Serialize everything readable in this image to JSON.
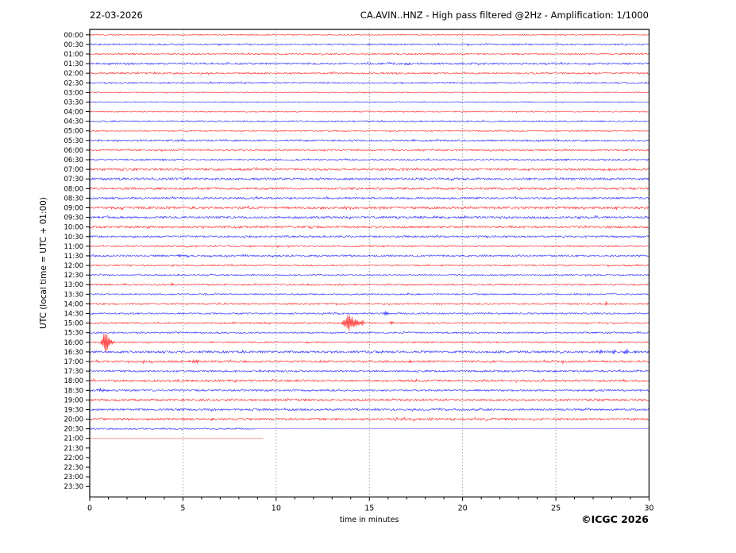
{
  "header": {
    "date": "22-03-2026",
    "station_title": "CA.AVIN..HNZ - High pass filtered @2Hz - Amplification: 1/1000"
  },
  "footer": {
    "copyright": "©ICGC 2026"
  },
  "chart_data": {
    "type": "line",
    "subtype": "helicorder-seismogram",
    "title": "CA.AVIN..HNZ - High pass filtered @2Hz - Amplification: 1/1000",
    "date": "22-03-2026",
    "xlabel": "time in minutes",
    "ylabel": "UTC (local time = UTC + 01:00)",
    "xlim": [
      0,
      30
    ],
    "x_major_ticks": [
      0,
      5,
      10,
      15,
      20,
      25,
      30
    ],
    "x_tick_labels": [
      "0",
      "5",
      "10",
      "15",
      "20",
      "25",
      "30"
    ],
    "x_minor_tick_step": 1,
    "grid_minutes": [
      5,
      10,
      15,
      20,
      25
    ],
    "grid_on": true,
    "row_minutes": 30,
    "amplitude_units": "px",
    "colors": {
      "red": "#ff0000",
      "blue": "#0000ff",
      "grid": "#888888",
      "axis": "#000000"
    },
    "rows": [
      {
        "label": "00:00",
        "color": "red",
        "segments": [
          [
            0,
            30,
            0.7
          ]
        ],
        "events": []
      },
      {
        "label": "00:30",
        "color": "blue",
        "segments": [
          [
            0,
            30,
            1.0
          ]
        ],
        "events": []
      },
      {
        "label": "01:00",
        "color": "red",
        "segments": [
          [
            0,
            30,
            1.0
          ]
        ],
        "events": []
      },
      {
        "label": "01:30",
        "color": "blue",
        "segments": [
          [
            0,
            30,
            1.2
          ]
        ],
        "events": [
          [
            17.0,
            2.0,
            0.12
          ]
        ]
      },
      {
        "label": "02:00",
        "color": "red",
        "segments": [
          [
            0,
            30,
            1.1
          ]
        ],
        "events": []
      },
      {
        "label": "02:30",
        "color": "blue",
        "segments": [
          [
            0,
            30,
            1.0
          ]
        ],
        "events": [
          [
            3.4,
            1.0,
            0.05
          ]
        ]
      },
      {
        "label": "03:00",
        "color": "red",
        "segments": [
          [
            0,
            30,
            0.6
          ]
        ],
        "events": [
          [
            1.6,
            0.9,
            0.04
          ]
        ]
      },
      {
        "label": "03:30",
        "color": "blue",
        "segments": [
          [
            0,
            30,
            0.6
          ]
        ],
        "events": []
      },
      {
        "label": "04:00",
        "color": "red",
        "segments": [
          [
            0,
            30,
            0.7
          ]
        ],
        "events": [
          [
            14.5,
            1.0,
            0.04
          ]
        ]
      },
      {
        "label": "04:30",
        "color": "blue",
        "segments": [
          [
            0,
            30,
            0.9
          ]
        ],
        "events": [
          [
            9.2,
            0.9,
            0.05
          ],
          [
            13.8,
            0.9,
            0.05
          ]
        ]
      },
      {
        "label": "05:00",
        "color": "red",
        "segments": [
          [
            0,
            30,
            0.8
          ]
        ],
        "events": []
      },
      {
        "label": "05:30",
        "color": "blue",
        "segments": [
          [
            0,
            30,
            1.1
          ]
        ],
        "events": [
          [
            3.5,
            1.0,
            0.05
          ],
          [
            20.1,
            1.1,
            0.05
          ]
        ]
      },
      {
        "label": "06:00",
        "color": "red",
        "segments": [
          [
            0,
            30,
            1.1
          ]
        ],
        "events": [
          [
            16.3,
            1.1,
            0.05
          ]
        ]
      },
      {
        "label": "06:30",
        "color": "blue",
        "segments": [
          [
            0,
            30,
            1.0
          ]
        ],
        "events": []
      },
      {
        "label": "07:00",
        "color": "red",
        "segments": [
          [
            0,
            30,
            1.4
          ]
        ],
        "events": []
      },
      {
        "label": "07:30",
        "color": "blue",
        "segments": [
          [
            0,
            30,
            1.5
          ]
        ],
        "events": []
      },
      {
        "label": "08:00",
        "color": "red",
        "segments": [
          [
            0,
            30,
            1.3
          ]
        ],
        "events": []
      },
      {
        "label": "08:30",
        "color": "blue",
        "segments": [
          [
            0,
            30,
            1.3
          ]
        ],
        "events": []
      },
      {
        "label": "09:00",
        "color": "red",
        "segments": [
          [
            0,
            30,
            1.5
          ]
        ],
        "events": []
      },
      {
        "label": "09:30",
        "color": "blue",
        "segments": [
          [
            0,
            30,
            1.4
          ]
        ],
        "events": []
      },
      {
        "label": "10:00",
        "color": "red",
        "segments": [
          [
            0,
            30,
            1.4
          ]
        ],
        "events": []
      },
      {
        "label": "10:30",
        "color": "blue",
        "segments": [
          [
            0,
            30,
            1.2
          ]
        ],
        "events": []
      },
      {
        "label": "11:00",
        "color": "red",
        "segments": [
          [
            0,
            30,
            1.0
          ]
        ],
        "events": [
          [
            10.1,
            2.8,
            0.04
          ]
        ]
      },
      {
        "label": "11:30",
        "color": "blue",
        "segments": [
          [
            0,
            30,
            1.2
          ]
        ],
        "events": [
          [
            5.0,
            1.0,
            0.5
          ]
        ]
      },
      {
        "label": "12:00",
        "color": "red",
        "segments": [
          [
            0,
            30,
            1.0
          ]
        ],
        "events": [
          [
            13.1,
            1.0,
            0.05
          ]
        ]
      },
      {
        "label": "12:30",
        "color": "blue",
        "segments": [
          [
            0,
            30,
            0.9
          ]
        ],
        "events": []
      },
      {
        "label": "13:00",
        "color": "red",
        "segments": [
          [
            0,
            30,
            1.0
          ]
        ],
        "events": [
          [
            1.9,
            2.6,
            0.05
          ],
          [
            4.4,
            2.6,
            0.05
          ]
        ]
      },
      {
        "label": "13:30",
        "color": "blue",
        "segments": [
          [
            0,
            30,
            0.9
          ]
        ],
        "events": []
      },
      {
        "label": "14:00",
        "color": "red",
        "segments": [
          [
            0,
            30,
            1.0
          ]
        ],
        "events": [
          [
            27.7,
            3.2,
            0.05
          ]
        ]
      },
      {
        "label": "14:30",
        "color": "blue",
        "segments": [
          [
            0,
            30,
            1.0
          ]
        ],
        "events": [
          [
            15.9,
            2.2,
            0.15
          ]
        ]
      },
      {
        "label": "15:00",
        "color": "red",
        "segments": [
          [
            0,
            30,
            1.0
          ]
        ],
        "events": [
          [
            13.9,
            10.5,
            0.3
          ],
          [
            14.35,
            2.5,
            0.2
          ],
          [
            14.65,
            3.5,
            0.08
          ],
          [
            16.2,
            2.6,
            0.12
          ]
        ]
      },
      {
        "label": "15:30",
        "color": "blue",
        "segments": [
          [
            0,
            30,
            1.0
          ]
        ],
        "events": []
      },
      {
        "label": "16:00",
        "color": "red",
        "segments": [
          [
            0,
            30,
            1.0
          ]
        ],
        "events": [
          [
            0.85,
            13.5,
            0.18
          ],
          [
            1.1,
            2.0,
            0.3
          ]
        ]
      },
      {
        "label": "16:30",
        "color": "blue",
        "segments": [
          [
            0,
            30,
            1.4
          ]
        ],
        "events": [
          [
            3.9,
            1.2,
            0.15
          ],
          [
            8.2,
            1.8,
            0.15
          ],
          [
            22.0,
            1.2,
            0.1
          ],
          [
            27.4,
            1.8,
            0.12
          ],
          [
            28.1,
            1.8,
            0.1
          ],
          [
            28.8,
            3.0,
            0.12
          ],
          [
            29.3,
            1.6,
            0.08
          ]
        ]
      },
      {
        "label": "17:00",
        "color": "red",
        "segments": [
          [
            0,
            30,
            1.3
          ]
        ],
        "events": [
          [
            2.9,
            1.8,
            0.06
          ],
          [
            5.7,
            1.4,
            0.3
          ],
          [
            17.2,
            1.4,
            0.05
          ],
          [
            25.4,
            1.8,
            0.05
          ]
        ]
      },
      {
        "label": "17:30",
        "color": "blue",
        "segments": [
          [
            0,
            30,
            1.2
          ]
        ],
        "events": [
          [
            9.1,
            1.4,
            0.1
          ]
        ]
      },
      {
        "label": "18:00",
        "color": "red",
        "segments": [
          [
            0,
            30,
            1.4
          ]
        ],
        "events": []
      },
      {
        "label": "18:30",
        "color": "blue",
        "segments": [
          [
            0,
            30,
            1.2
          ]
        ],
        "events": [
          [
            0.6,
            2.2,
            0.2
          ]
        ]
      },
      {
        "label": "19:00",
        "color": "red",
        "segments": [
          [
            0,
            30,
            1.4
          ]
        ],
        "events": []
      },
      {
        "label": "19:30",
        "color": "blue",
        "segments": [
          [
            0,
            30,
            1.3
          ]
        ],
        "events": []
      },
      {
        "label": "20:00",
        "color": "red",
        "segments": [
          [
            0,
            30,
            1.4
          ]
        ],
        "events": [
          [
            12.5,
            1.5,
            0.08
          ]
        ]
      },
      {
        "label": "20:30",
        "color": "blue",
        "segments": [
          [
            0,
            8.7,
            1.0
          ],
          [
            8.7,
            30,
            0.12
          ]
        ],
        "events": [
          [
            8.8,
            1.2,
            0.06
          ]
        ]
      },
      {
        "label": "21:00",
        "color": "red",
        "segments": [
          [
            0,
            9.3,
            0.07
          ]
        ],
        "events": []
      },
      {
        "label": "21:30",
        "color": "blue",
        "segments": [],
        "events": []
      },
      {
        "label": "22:00",
        "color": "red",
        "segments": [],
        "events": []
      },
      {
        "label": "22:30",
        "color": "blue",
        "segments": [],
        "events": []
      },
      {
        "label": "23:00",
        "color": "red",
        "segments": [],
        "events": []
      },
      {
        "label": "23:30",
        "color": "blue",
        "segments": [],
        "events": []
      }
    ]
  }
}
